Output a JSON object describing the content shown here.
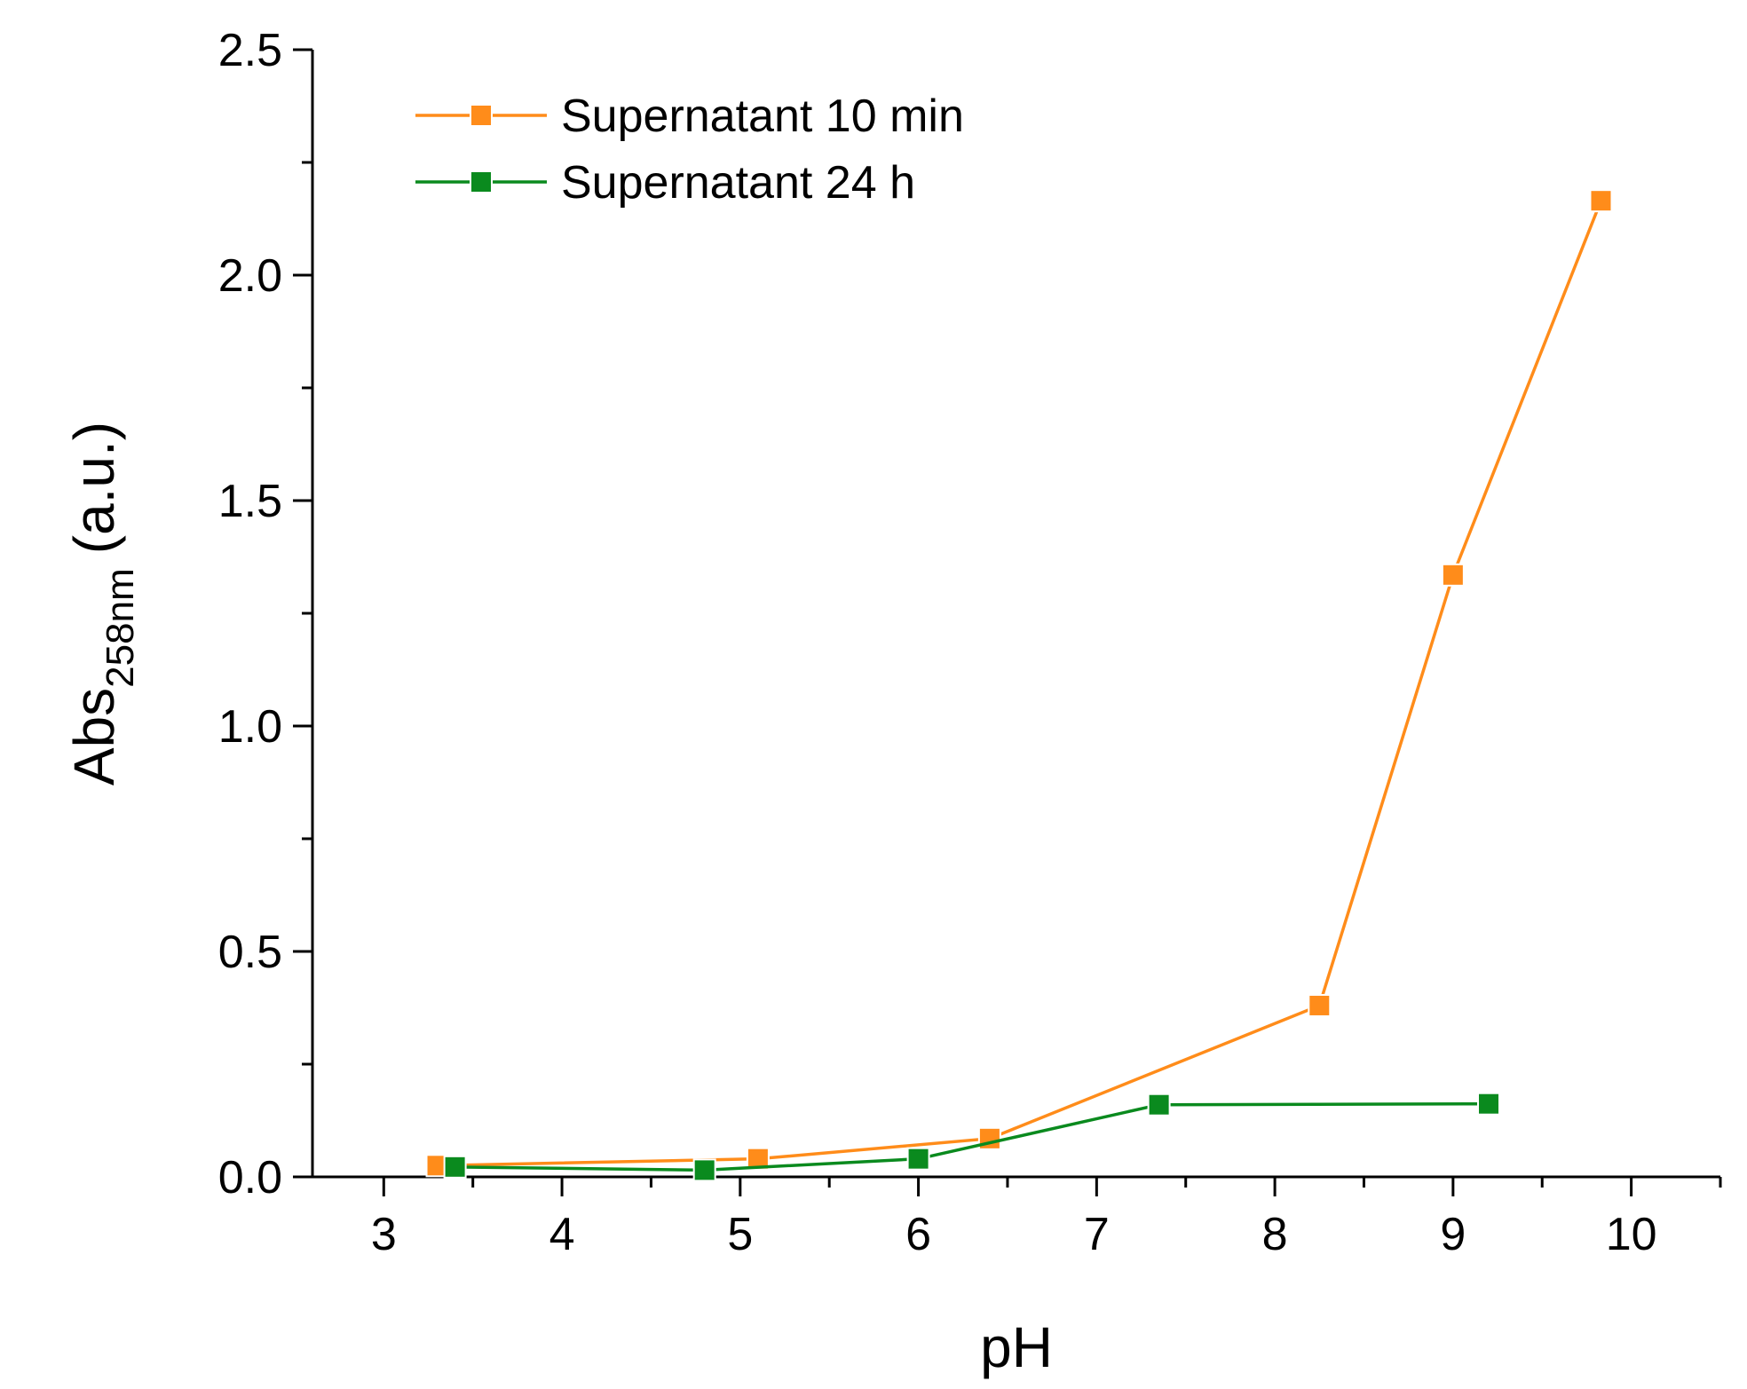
{
  "chart_data": {
    "type": "line",
    "title": "",
    "xlabel": "pH",
    "ylabel": {
      "main": "Abs",
      "subscript": "258nm",
      "suffix": "(a.u.)"
    },
    "xlim": [
      2.6,
      10.5
    ],
    "ylim": [
      0,
      2.5
    ],
    "x_ticks": [
      3,
      4,
      5,
      6,
      7,
      8,
      9,
      10
    ],
    "x_tick_labels": [
      "3",
      "4",
      "5",
      "6",
      "7",
      "8",
      "9",
      "10"
    ],
    "x_minor_ticks": [
      3.5,
      4.5,
      5.5,
      6.5,
      7.5,
      8.5,
      9.5,
      10.5
    ],
    "y_ticks": [
      0,
      0.5,
      1.0,
      1.5,
      2.0,
      2.5
    ],
    "y_tick_labels": [
      "0.0",
      "0.5",
      "1.0",
      "1.5",
      "2.0",
      "2.5"
    ],
    "y_minor_ticks": [
      0.25,
      0.75,
      1.25,
      1.75,
      2.25
    ],
    "grid": false,
    "legend_position": "top-left",
    "series": [
      {
        "name": "Supernatant 10 min",
        "color": "#ff8c1a",
        "marker": "square",
        "x": [
          3.3,
          5.1,
          6.4,
          8.25,
          9.0,
          9.83
        ],
        "y": [
          0.025,
          0.04,
          0.085,
          0.38,
          1.335,
          2.165
        ]
      },
      {
        "name": "Supernatant 24 h",
        "color": "#0a8a1e",
        "marker": "square",
        "x": [
          3.4,
          4.8,
          6.0,
          7.35,
          9.2
        ],
        "y": [
          0.022,
          0.015,
          0.04,
          0.16,
          0.162
        ]
      }
    ]
  }
}
